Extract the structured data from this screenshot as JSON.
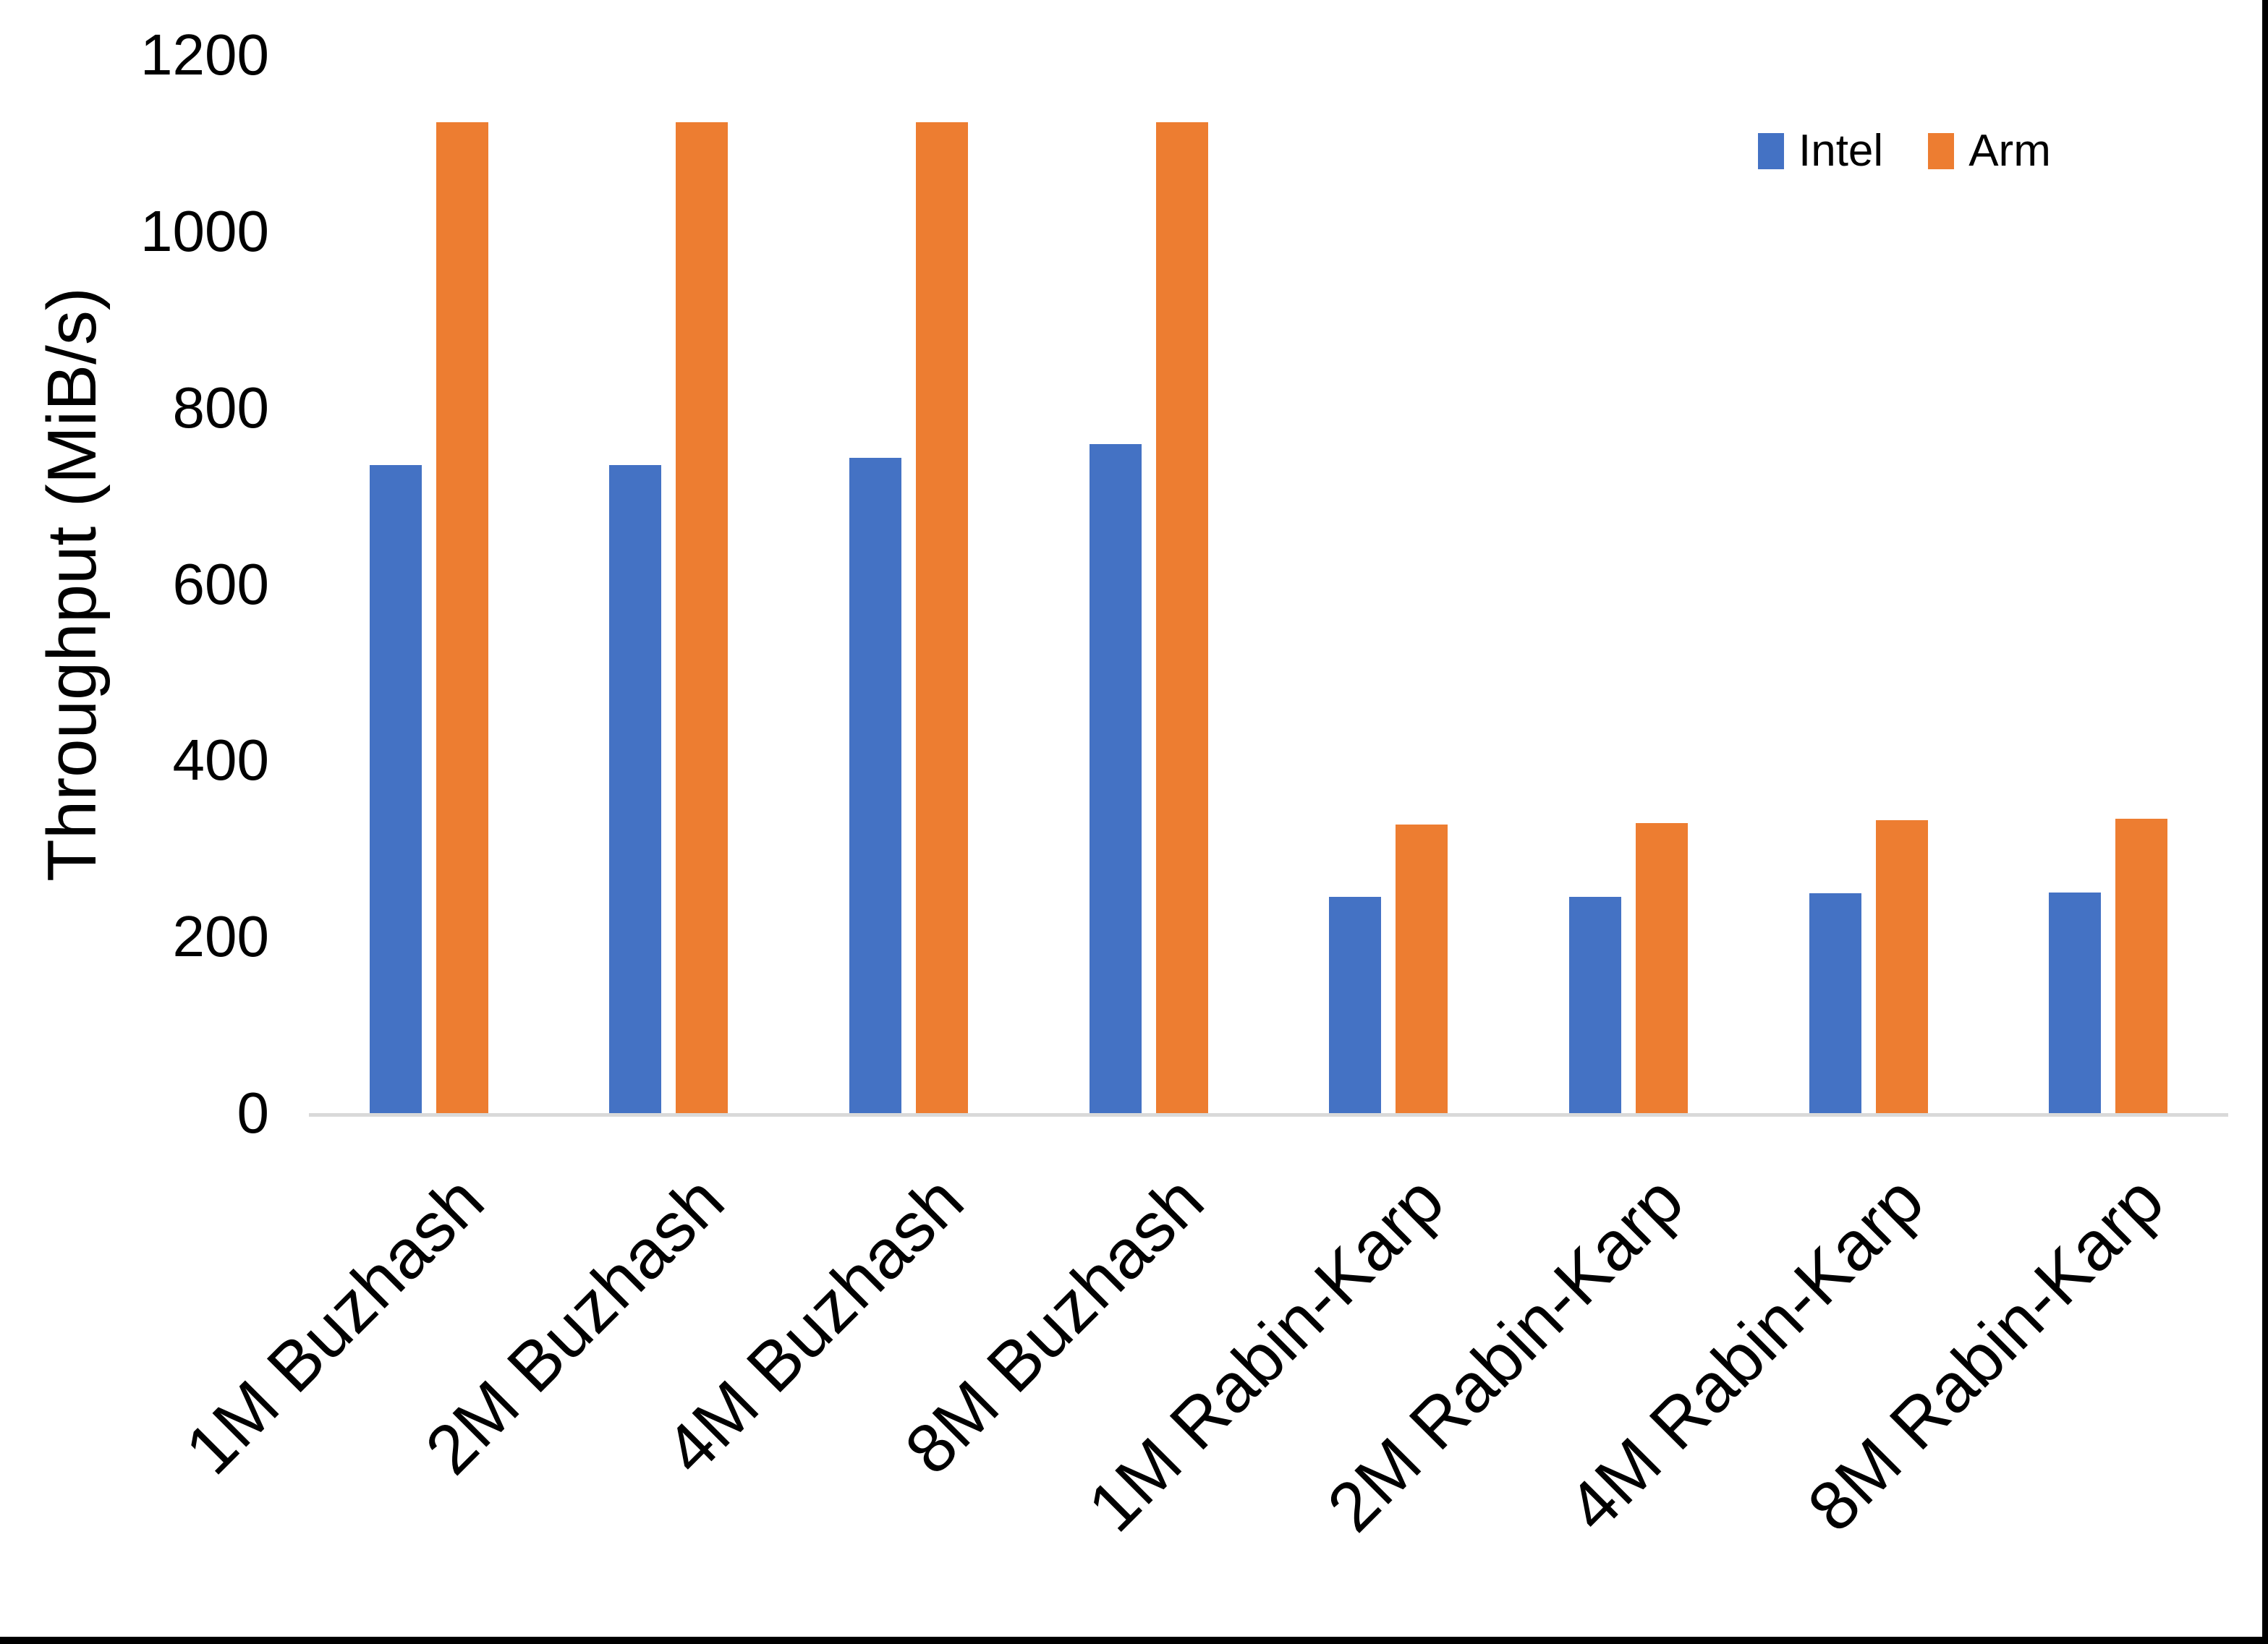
{
  "chart_data": {
    "type": "bar",
    "title": "",
    "xlabel": "",
    "ylabel": "Throughput (MiB/s)",
    "ylim": [
      0,
      1200
    ],
    "ytick_step": 200,
    "yticks": [
      0,
      200,
      400,
      600,
      800,
      1000,
      1200
    ],
    "ytick_labels": [
      "0",
      "200",
      "400",
      "600",
      "800",
      "1000",
      "1200"
    ],
    "grid": false,
    "legend_position": "top-right",
    "categories": [
      "1M Buzhash",
      "2M Buzhash",
      "4M Buzhash",
      "8M Buzhash",
      "1M Rabin-Karp",
      "2M Rabin-Karp",
      "4M Rabin-Karp",
      "8M Rabin-Karp"
    ],
    "series": [
      {
        "name": "Intel",
        "color": "#4472C4",
        "values": [
          735,
          735,
          743,
          759,
          245,
          245,
          249,
          250
        ]
      },
      {
        "name": "Arm",
        "color": "#ED7D31",
        "values": [
          1124,
          1124,
          1124,
          1124,
          327,
          329,
          332,
          334
        ]
      }
    ]
  },
  "axis": {
    "line_color": "#D9D9D9",
    "text_color": "#000000"
  },
  "legend": {
    "items": [
      {
        "label": "Intel",
        "color": "#4472C4"
      },
      {
        "label": "Arm",
        "color": "#ED7D31"
      }
    ]
  },
  "window_frame": {
    "bottom_bar_color": "#000000",
    "right_bar_color": "#000000"
  }
}
